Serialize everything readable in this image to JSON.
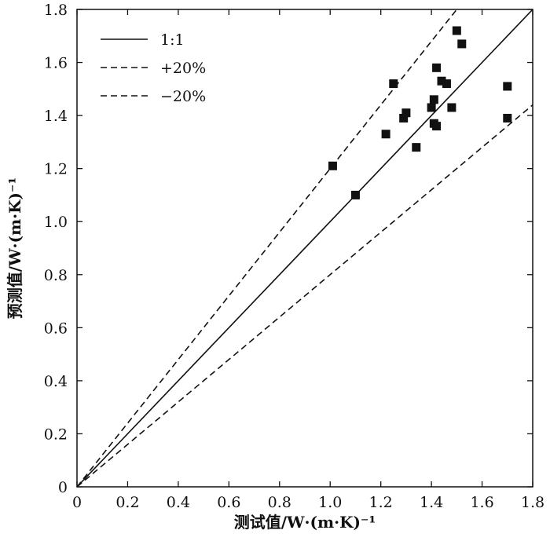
{
  "chart_data": {
    "type": "scatter",
    "xlabel": "测试值/W·(m·K)⁻¹",
    "ylabel": "预测值/W·(m·K)⁻¹",
    "xlim": [
      0,
      1.8
    ],
    "ylim": [
      0,
      1.8
    ],
    "xticks": [
      "0",
      "0.2",
      "0.4",
      "0.6",
      "0.8",
      "1.0",
      "1.2",
      "1.4",
      "1.6",
      "1.8"
    ],
    "yticks": [
      "0",
      "0.2",
      "0.4",
      "0.6",
      "0.8",
      "1.0",
      "1.2",
      "1.4",
      "1.6",
      "1.8"
    ],
    "legend_position": "top-left",
    "series": [
      {
        "name": "1:1",
        "style": "solid",
        "slope": 1.0
      },
      {
        "name": "+20%",
        "style": "dash-dot",
        "slope": 1.2
      },
      {
        "name": "−20%",
        "style": "dash-dot",
        "slope": 0.8
      }
    ],
    "points": [
      {
        "x": 1.01,
        "y": 1.21
      },
      {
        "x": 1.1,
        "y": 1.1
      },
      {
        "x": 1.22,
        "y": 1.33
      },
      {
        "x": 1.25,
        "y": 1.52
      },
      {
        "x": 1.29,
        "y": 1.39
      },
      {
        "x": 1.3,
        "y": 1.41
      },
      {
        "x": 1.34,
        "y": 1.28
      },
      {
        "x": 1.4,
        "y": 1.43
      },
      {
        "x": 1.41,
        "y": 1.37
      },
      {
        "x": 1.41,
        "y": 1.46
      },
      {
        "x": 1.42,
        "y": 1.58
      },
      {
        "x": 1.42,
        "y": 1.36
      },
      {
        "x": 1.44,
        "y": 1.53
      },
      {
        "x": 1.46,
        "y": 1.52
      },
      {
        "x": 1.48,
        "y": 1.43
      },
      {
        "x": 1.5,
        "y": 1.72
      },
      {
        "x": 1.52,
        "y": 1.67
      },
      {
        "x": 1.7,
        "y": 1.51
      },
      {
        "x": 1.7,
        "y": 1.39
      }
    ],
    "marker_color": "#111111"
  }
}
